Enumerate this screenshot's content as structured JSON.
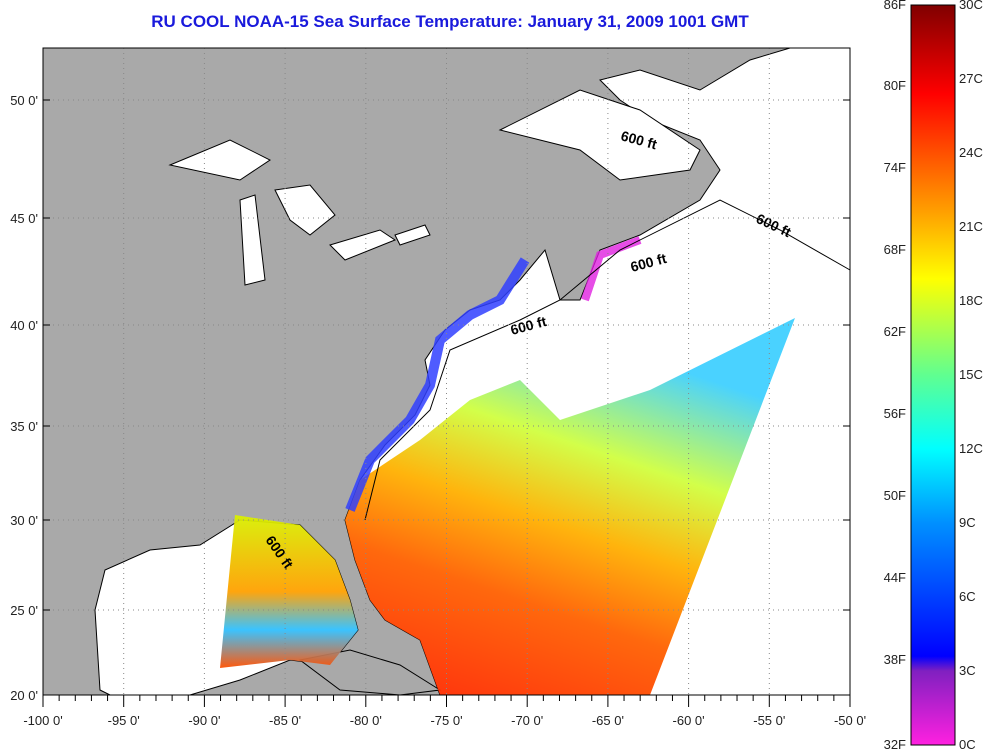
{
  "title": "RU COOL  NOAA-15  Sea Surface Temperature:  January 31, 2009 1001 GMT",
  "map": {
    "lat_labels": [
      "50 0'",
      "45 0'",
      "40 0'",
      "35 0'",
      "30 0'",
      "25 0'",
      "20 0'"
    ],
    "lon_labels": [
      "-100 0'",
      "-95 0'",
      "-90 0'",
      "-85 0'",
      "-80 0'",
      "-75 0'",
      "-70 0'",
      "-65 0'",
      "-60 0'",
      "-55 0'",
      "-50 0'"
    ],
    "isobath_labels": [
      "600 ft",
      "600 ft",
      "600 ft",
      "600 ft",
      "600 ft"
    ]
  },
  "colorbar": {
    "f_labels": [
      "86F",
      "80F",
      "74F",
      "68F",
      "62F",
      "56F",
      "50F",
      "44F",
      "38F",
      "32F"
    ],
    "c_labels": [
      "30C",
      "27C",
      "24C",
      "21C",
      "18C",
      "15C",
      "12C",
      "9C",
      "6C",
      "3C",
      "0C"
    ],
    "range_c": [
      0,
      30
    ],
    "colors": [
      "#ff20e0",
      "#8020c0",
      "#0000ff",
      "#0090ff",
      "#00ffff",
      "#60ff90",
      "#ffff00",
      "#ffa000",
      "#ff5000",
      "#ff0000",
      "#800000"
    ]
  }
}
